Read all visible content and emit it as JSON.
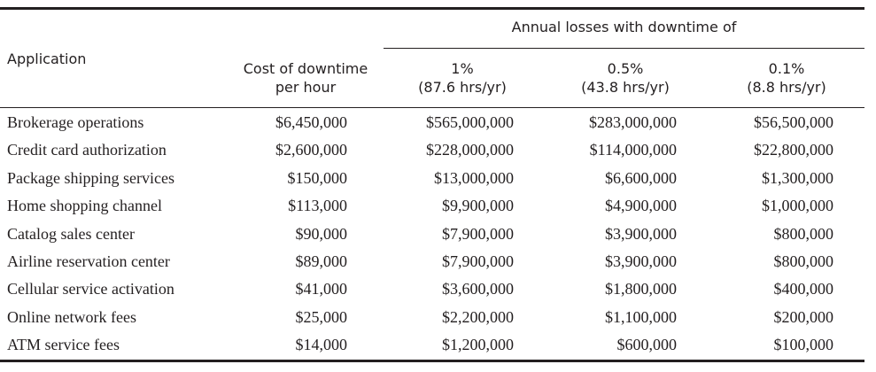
{
  "table": {
    "group_header": "Annual losses with downtime of",
    "headers": {
      "application": "Application",
      "cost_line1": "Cost of downtime",
      "cost_line2": "per hour",
      "d1_line1": "1%",
      "d1_line2": "(87.6 hrs/yr)",
      "d2_line1": "0.5%",
      "d2_line2": "(43.8 hrs/yr)",
      "d3_line1": "0.1%",
      "d3_line2": "(8.8 hrs/yr)"
    },
    "rows": [
      {
        "application": "Brokerage operations",
        "cost_per_hour": "$6,450,000",
        "loss_1pct": "$565,000,000",
        "loss_05pct": "$283,000,000",
        "loss_01pct": "$56,500,000"
      },
      {
        "application": "Credit card authorization",
        "cost_per_hour": "$2,600,000",
        "loss_1pct": "$228,000,000",
        "loss_05pct": "$114,000,000",
        "loss_01pct": "$22,800,000"
      },
      {
        "application": "Package shipping services",
        "cost_per_hour": "$150,000",
        "loss_1pct": "$13,000,000",
        "loss_05pct": "$6,600,000",
        "loss_01pct": "$1,300,000"
      },
      {
        "application": "Home shopping channel",
        "cost_per_hour": "$113,000",
        "loss_1pct": "$9,900,000",
        "loss_05pct": "$4,900,000",
        "loss_01pct": "$1,000,000"
      },
      {
        "application": "Catalog sales center",
        "cost_per_hour": "$90,000",
        "loss_1pct": "$7,900,000",
        "loss_05pct": "$3,900,000",
        "loss_01pct": "$800,000"
      },
      {
        "application": "Airline reservation center",
        "cost_per_hour": "$89,000",
        "loss_1pct": "$7,900,000",
        "loss_05pct": "$3,900,000",
        "loss_01pct": "$800,000"
      },
      {
        "application": "Cellular service activation",
        "cost_per_hour": "$41,000",
        "loss_1pct": "$3,600,000",
        "loss_05pct": "$1,800,000",
        "loss_01pct": "$400,000"
      },
      {
        "application": "Online network fees",
        "cost_per_hour": "$25,000",
        "loss_1pct": "$2,200,000",
        "loss_05pct": "$1,100,000",
        "loss_01pct": "$200,000"
      },
      {
        "application": "ATM service fees",
        "cost_per_hour": "$14,000",
        "loss_1pct": "$1,200,000",
        "loss_05pct": "$600,000",
        "loss_01pct": "$100,000"
      }
    ]
  }
}
